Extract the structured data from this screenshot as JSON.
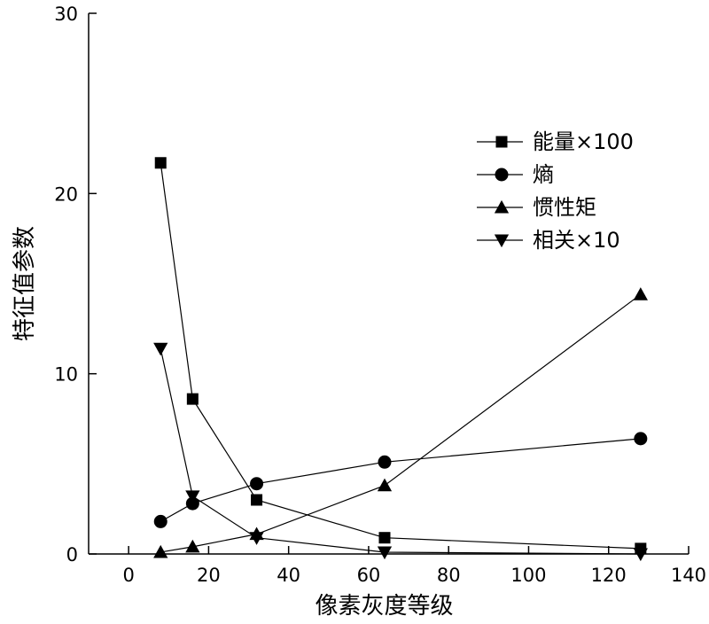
{
  "chart_data": {
    "type": "line",
    "title": "",
    "xlabel": "像素灰度等级",
    "ylabel": "特征值参数",
    "xlim": [
      -10,
      140
    ],
    "ylim": [
      0,
      30
    ],
    "xticks": [
      0,
      20,
      40,
      60,
      80,
      100,
      120,
      140
    ],
    "yticks": [
      0,
      10,
      20,
      30
    ],
    "grid": false,
    "legend_position": "top-right",
    "x": [
      8,
      16,
      32,
      64,
      128
    ],
    "series": [
      {
        "name": "能量×100",
        "marker": "square",
        "values": [
          21.7,
          8.6,
          3.0,
          0.9,
          0.3
        ]
      },
      {
        "name": "熵",
        "marker": "circle",
        "values": [
          1.8,
          2.8,
          3.9,
          5.1,
          6.4
        ]
      },
      {
        "name": "惯性矩",
        "marker": "triangle-up",
        "values": [
          0.1,
          0.4,
          1.1,
          3.8,
          14.4
        ]
      },
      {
        "name": "相关×10",
        "marker": "triangle-down",
        "values": [
          11.4,
          3.2,
          0.9,
          0.1,
          0.0
        ]
      }
    ]
  }
}
